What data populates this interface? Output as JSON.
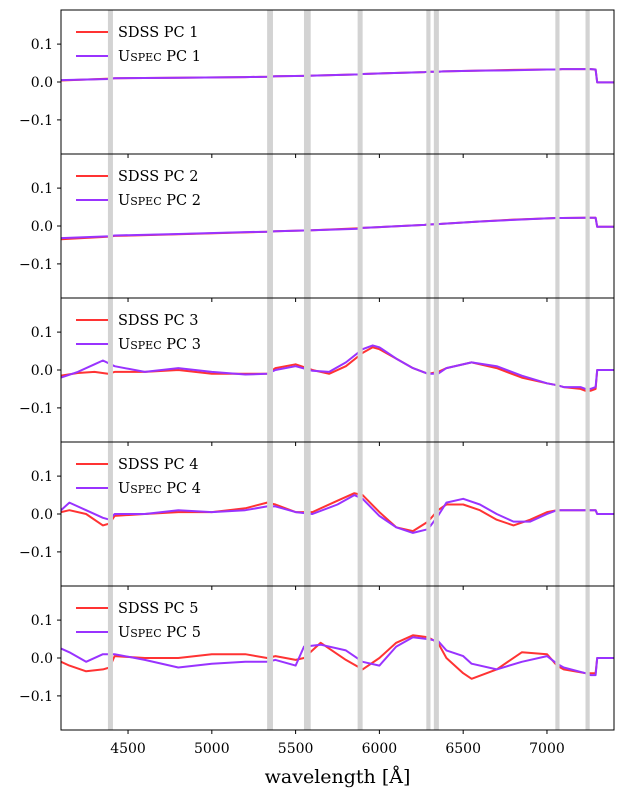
{
  "xlabel": "wavelength [Å]",
  "chart_data": [
    {
      "type": "line",
      "panel": 1,
      "xlim": [
        4100,
        7400
      ],
      "ylim": [
        -0.19,
        0.19
      ],
      "yticks": [
        {
          "value": 0.1,
          "label": "0.1"
        },
        {
          "value": 0.0,
          "label": "0.0"
        },
        {
          "value": -0.1,
          "label": "−0.1"
        }
      ],
      "legend_position": "top-left",
      "series": [
        {
          "name": "SDSS PC 1",
          "color": "#ff3333",
          "x": [
            4100,
            4390,
            4420,
            4800,
            5200,
            5330,
            5380,
            5550,
            5600,
            5880,
            5900,
            6270,
            6290,
            6350,
            6380,
            6600,
            6800,
            7000,
            7060,
            7090,
            7230,
            7260,
            7290,
            7300,
            7400
          ],
          "values": [
            0.004,
            0.009,
            0.01,
            0.011,
            0.013,
            0.014,
            0.015,
            0.016,
            0.017,
            0.02,
            0.021,
            0.026,
            0.027,
            0.027,
            0.028,
            0.03,
            0.032,
            0.033,
            0.033,
            0.034,
            0.034,
            0.034,
            0.033,
            -0.001,
            -0.001
          ]
        },
        {
          "name": "USPEC PC 1",
          "color": "#9933ff",
          "x": [
            4100,
            4390,
            4420,
            4800,
            5200,
            5330,
            5380,
            5550,
            5600,
            5880,
            5900,
            6270,
            6290,
            6350,
            6380,
            6600,
            6800,
            7000,
            7060,
            7090,
            7230,
            7260,
            7290,
            7300,
            7400
          ],
          "values": [
            0.005,
            0.008,
            0.01,
            0.011,
            0.013,
            0.014,
            0.015,
            0.016,
            0.017,
            0.02,
            0.021,
            0.026,
            0.027,
            0.027,
            0.028,
            0.03,
            0.031,
            0.033,
            0.033,
            0.034,
            0.034,
            0.034,
            0.033,
            -0.001,
            -0.001
          ]
        }
      ]
    },
    {
      "type": "line",
      "panel": 2,
      "xlim": [
        4100,
        7400
      ],
      "ylim": [
        -0.19,
        0.19
      ],
      "yticks": [
        {
          "value": 0.1,
          "label": "0.1"
        },
        {
          "value": 0.0,
          "label": "0.0"
        },
        {
          "value": -0.1,
          "label": "−0.1"
        }
      ],
      "legend_position": "top-left",
      "series": [
        {
          "name": "SDSS PC 2",
          "color": "#ff3333",
          "x": [
            4100,
            4390,
            4420,
            4800,
            5200,
            5330,
            5380,
            5550,
            5600,
            5880,
            5900,
            6270,
            6290,
            6350,
            6380,
            6600,
            6800,
            7000,
            7060,
            7090,
            7230,
            7260,
            7290,
            7300,
            7400
          ],
          "values": [
            -0.035,
            -0.028,
            -0.026,
            -0.022,
            -0.017,
            -0.015,
            -0.014,
            -0.012,
            -0.011,
            -0.006,
            -0.005,
            0.003,
            0.004,
            0.005,
            0.006,
            0.012,
            0.017,
            0.02,
            0.021,
            0.021,
            0.022,
            0.022,
            0.022,
            -0.002,
            -0.002
          ]
        },
        {
          "name": "USPEC PC 2",
          "color": "#9933ff",
          "x": [
            4100,
            4390,
            4420,
            4800,
            5200,
            5330,
            5380,
            5550,
            5600,
            5880,
            5900,
            6270,
            6290,
            6350,
            6380,
            6600,
            6800,
            7000,
            7060,
            7090,
            7230,
            7260,
            7290,
            7300,
            7400
          ],
          "values": [
            -0.032,
            -0.027,
            -0.025,
            -0.021,
            -0.016,
            -0.015,
            -0.014,
            -0.012,
            -0.011,
            -0.007,
            -0.005,
            0.003,
            0.004,
            0.005,
            0.006,
            0.012,
            0.016,
            0.02,
            0.021,
            0.021,
            0.022,
            0.022,
            0.022,
            -0.002,
            -0.002
          ]
        }
      ]
    },
    {
      "type": "line",
      "panel": 3,
      "xlim": [
        4100,
        7400
      ],
      "ylim": [
        -0.19,
        0.19
      ],
      "yticks": [
        {
          "value": 0.1,
          "label": "0.1"
        },
        {
          "value": 0.0,
          "label": "0.0"
        },
        {
          "value": -0.1,
          "label": "−0.1"
        }
      ],
      "legend_position": "top-left",
      "series": [
        {
          "name": "SDSS PC 3",
          "color": "#ff3333",
          "x": [
            4100,
            4200,
            4300,
            4380,
            4420,
            4600,
            4800,
            5000,
            5200,
            5330,
            5380,
            5500,
            5600,
            5700,
            5800,
            5900,
            5960,
            6000,
            6100,
            6200,
            6290,
            6350,
            6400,
            6550,
            6700,
            6850,
            7000,
            7060,
            7100,
            7200,
            7230,
            7260,
            7290,
            7300,
            7400
          ],
          "values": [
            -0.015,
            -0.008,
            -0.005,
            -0.01,
            -0.005,
            -0.005,
            0.0,
            -0.01,
            -0.01,
            -0.01,
            0.005,
            0.015,
            0.0,
            -0.01,
            0.01,
            0.045,
            0.06,
            0.055,
            0.03,
            0.005,
            -0.01,
            -0.005,
            0.005,
            0.02,
            0.005,
            -0.02,
            -0.035,
            -0.04,
            -0.045,
            -0.05,
            -0.055,
            -0.055,
            -0.05,
            0.0,
            0.0
          ]
        },
        {
          "name": "USPEC PC 3",
          "color": "#9933ff",
          "x": [
            4100,
            4200,
            4300,
            4350,
            4420,
            4600,
            4800,
            5000,
            5200,
            5330,
            5380,
            5500,
            5600,
            5700,
            5800,
            5900,
            5960,
            6000,
            6100,
            6200,
            6290,
            6350,
            6400,
            6550,
            6700,
            6850,
            7000,
            7060,
            7100,
            7200,
            7230,
            7260,
            7290,
            7300,
            7400
          ],
          "values": [
            -0.02,
            -0.005,
            0.015,
            0.025,
            0.01,
            -0.005,
            0.005,
            -0.005,
            -0.012,
            -0.01,
            0.0,
            0.01,
            -0.002,
            -0.005,
            0.02,
            0.055,
            0.065,
            0.06,
            0.03,
            0.005,
            -0.01,
            -0.01,
            0.005,
            0.02,
            0.01,
            -0.015,
            -0.035,
            -0.04,
            -0.045,
            -0.045,
            -0.05,
            -0.05,
            -0.045,
            0.0,
            0.0
          ]
        }
      ]
    },
    {
      "type": "line",
      "panel": 4,
      "xlim": [
        4100,
        7400
      ],
      "ylim": [
        -0.19,
        0.19
      ],
      "yticks": [
        {
          "value": 0.1,
          "label": "0.1"
        },
        {
          "value": 0.0,
          "label": "0.0"
        },
        {
          "value": -0.1,
          "label": "−0.1"
        }
      ],
      "legend_position": "top-left",
      "series": [
        {
          "name": "SDSS PC 4",
          "color": "#ff3333",
          "x": [
            4100,
            4150,
            4250,
            4350,
            4390,
            4420,
            4600,
            4800,
            5000,
            5200,
            5330,
            5380,
            5500,
            5600,
            5750,
            5850,
            5900,
            6000,
            6100,
            6200,
            6290,
            6350,
            6400,
            6500,
            6600,
            6700,
            6800,
            6900,
            7000,
            7060,
            7100,
            7230,
            7260,
            7290,
            7300,
            7400
          ],
          "values": [
            0.005,
            0.01,
            0.0,
            -0.03,
            -0.025,
            -0.005,
            0.0,
            0.005,
            0.005,
            0.015,
            0.03,
            0.025,
            0.005,
            0.005,
            0.035,
            0.055,
            0.05,
            0.005,
            -0.035,
            -0.045,
            -0.02,
            0.01,
            0.025,
            0.025,
            0.01,
            -0.015,
            -0.03,
            -0.015,
            0.005,
            0.01,
            0.01,
            0.01,
            0.01,
            0.01,
            0.0,
            0.0
          ]
        },
        {
          "name": "USPEC PC 4",
          "color": "#9933ff",
          "x": [
            4100,
            4150,
            4250,
            4350,
            4390,
            4420,
            4600,
            4800,
            5000,
            5200,
            5330,
            5380,
            5500,
            5600,
            5750,
            5850,
            5900,
            6000,
            6100,
            6200,
            6290,
            6350,
            6400,
            6500,
            6600,
            6700,
            6800,
            6900,
            7000,
            7060,
            7100,
            7230,
            7260,
            7290,
            7300,
            7400
          ],
          "values": [
            0.01,
            0.03,
            0.01,
            -0.01,
            -0.015,
            0.0,
            0.0,
            0.01,
            0.005,
            0.01,
            0.02,
            0.02,
            0.005,
            0.0,
            0.025,
            0.05,
            0.04,
            -0.005,
            -0.035,
            -0.05,
            -0.04,
            -0.005,
            0.03,
            0.04,
            0.025,
            0.0,
            -0.02,
            -0.02,
            0.0,
            0.01,
            0.01,
            0.01,
            0.01,
            0.01,
            0.0,
            0.0
          ]
        }
      ]
    },
    {
      "type": "line",
      "panel": 5,
      "xlim": [
        4100,
        7400
      ],
      "ylim": [
        -0.19,
        0.19
      ],
      "yticks": [
        {
          "value": 0.1,
          "label": "0.1"
        },
        {
          "value": 0.0,
          "label": "0.0"
        },
        {
          "value": -0.1,
          "label": "−0.1"
        }
      ],
      "legend_position": "top-left",
      "series": [
        {
          "name": "SDSS PC 5",
          "color": "#ff3333",
          "x": [
            4100,
            4150,
            4250,
            4350,
            4390,
            4420,
            4600,
            4800,
            5000,
            5200,
            5330,
            5380,
            5500,
            5550,
            5650,
            5800,
            5900,
            6000,
            6100,
            6200,
            6290,
            6350,
            6400,
            6500,
            6550,
            6700,
            6850,
            7000,
            7060,
            7100,
            7230,
            7260,
            7290,
            7300,
            7400
          ],
          "values": [
            -0.01,
            -0.02,
            -0.035,
            -0.03,
            -0.025,
            0.005,
            0.0,
            0.0,
            0.01,
            0.01,
            0.0,
            0.005,
            -0.005,
            0.0,
            0.04,
            -0.005,
            -0.03,
            0.0,
            0.04,
            0.06,
            0.055,
            0.04,
            0.0,
            -0.04,
            -0.055,
            -0.03,
            0.015,
            0.01,
            -0.02,
            -0.03,
            -0.04,
            -0.04,
            -0.04,
            0.0,
            0.0
          ]
        },
        {
          "name": "USPEC PC 5",
          "color": "#9933ff",
          "x": [
            4100,
            4150,
            4250,
            4350,
            4390,
            4420,
            4600,
            4800,
            5000,
            5200,
            5330,
            5380,
            5500,
            5550,
            5650,
            5800,
            5900,
            6000,
            6100,
            6200,
            6290,
            6350,
            6400,
            6500,
            6550,
            6700,
            6850,
            7000,
            7060,
            7100,
            7230,
            7260,
            7290,
            7300,
            7400
          ],
          "values": [
            0.025,
            0.015,
            -0.01,
            0.01,
            0.01,
            0.01,
            -0.005,
            -0.025,
            -0.015,
            -0.01,
            -0.01,
            -0.005,
            -0.02,
            0.03,
            0.035,
            0.02,
            -0.01,
            -0.02,
            0.03,
            0.055,
            0.05,
            0.045,
            0.02,
            0.005,
            -0.015,
            -0.03,
            -0.01,
            0.005,
            -0.015,
            -0.025,
            -0.04,
            -0.045,
            -0.045,
            0.0,
            0.0
          ]
        }
      ]
    }
  ],
  "xticks": [
    {
      "value": 4500,
      "label": "4500"
    },
    {
      "value": 5000,
      "label": "5000"
    },
    {
      "value": 5500,
      "label": "5500"
    },
    {
      "value": 6000,
      "label": "6000"
    },
    {
      "value": 6500,
      "label": "6500"
    },
    {
      "value": 7000,
      "label": "7000"
    }
  ],
  "masked_bands": [
    [
      4380,
      4410
    ],
    [
      5330,
      5365
    ],
    [
      5550,
      5590
    ],
    [
      5870,
      5900
    ],
    [
      6280,
      6305
    ],
    [
      6325,
      6355
    ],
    [
      7050,
      7075
    ],
    [
      7230,
      7255
    ]
  ],
  "mask_color": "#d3d3d3"
}
